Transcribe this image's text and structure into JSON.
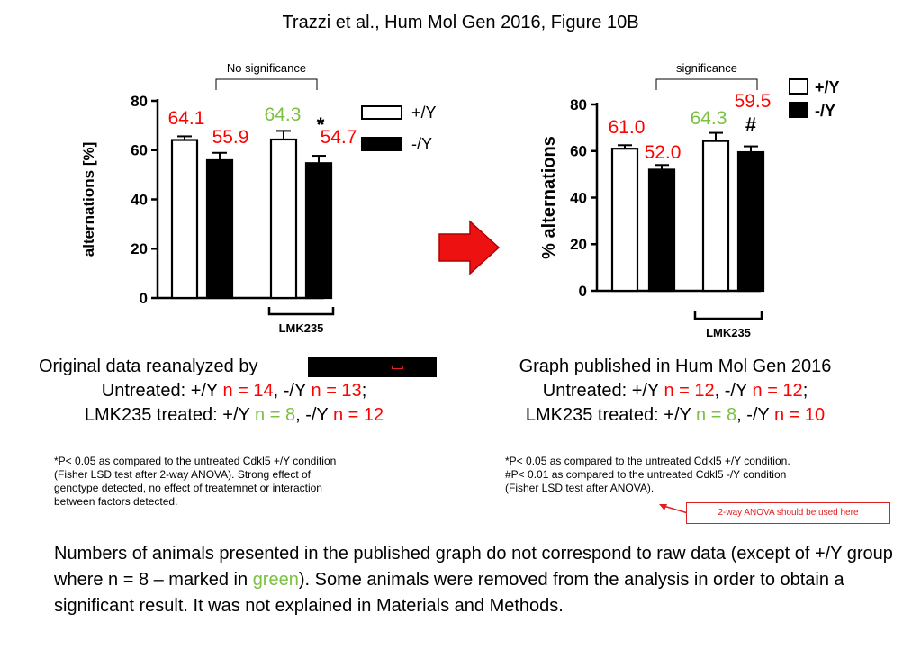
{
  "title": "Trazzi et al., Hum Mol Gen 2016, Figure 10B",
  "chart_data": [
    {
      "type": "bar",
      "ylabel": "alternations [%]",
      "ylim": [
        0,
        80
      ],
      "yticks": [
        "0",
        "20",
        "40",
        "60",
        "80"
      ],
      "group_label": "LMK235",
      "significance_label": "No significance",
      "legend": {
        "placement": "top-right",
        "entries": [
          "+/Y",
          "-/Y"
        ]
      },
      "bars": [
        {
          "series": "+/Y",
          "group": "untreated",
          "value": 64.1,
          "error": 1.5,
          "label": "64.1",
          "label_color": "#ff0000",
          "marker": ""
        },
        {
          "series": "-/Y",
          "group": "untreated",
          "value": 55.9,
          "error": 3.0,
          "label": "55.9",
          "label_color": "#ff0000",
          "marker": "*"
        },
        {
          "series": "+/Y",
          "group": "LMK235",
          "value": 64.3,
          "error": 3.5,
          "label": "64.3",
          "label_color": "#7bc043",
          "marker": ""
        },
        {
          "series": "-/Y",
          "group": "LMK235",
          "value": 54.7,
          "error": 3.0,
          "label": "54.7",
          "label_color": "#ff0000",
          "marker": "*"
        }
      ]
    },
    {
      "type": "bar",
      "ylabel": "% alternations",
      "ylim": [
        0,
        80
      ],
      "yticks": [
        "0",
        "20",
        "40",
        "60",
        "80"
      ],
      "group_label": "LMK235",
      "significance_label": "significance",
      "legend": {
        "placement": "top-right",
        "entries": [
          "+/Y",
          "-/Y"
        ]
      },
      "bars": [
        {
          "series": "+/Y",
          "group": "untreated",
          "value": 61.0,
          "error": 1.5,
          "label": "61.0",
          "label_color": "#ff0000",
          "marker": ""
        },
        {
          "series": "-/Y",
          "group": "untreated",
          "value": 52.0,
          "error": 2.0,
          "label": "52.0",
          "label_color": "#ff0000",
          "marker": "**"
        },
        {
          "series": "+/Y",
          "group": "LMK235",
          "value": 64.3,
          "error": 3.5,
          "label": "64.3",
          "label_color": "#7bc043",
          "marker": ""
        },
        {
          "series": "-/Y",
          "group": "LMK235",
          "value": 59.5,
          "error": 2.5,
          "label": "59.5",
          "label_color": "#ff0000",
          "marker": "#"
        }
      ]
    }
  ],
  "left_caption": {
    "line1": "Original data reanalyzed by",
    "untreated_prefix": "Untreated: +/Y ",
    "untreated_n1": "n = 14",
    "untreated_mid": ", -/Y ",
    "untreated_n2": "n = 13",
    "untreated_suffix": ";",
    "lmk_prefix": "LMK235 treated: +/Y ",
    "lmk_n1": "n = 8",
    "lmk_mid": ", -/Y ",
    "lmk_n2": "n = 12"
  },
  "right_caption": {
    "line1": "Graph published in Hum Mol Gen 2016",
    "untreated_prefix": "Untreated: +/Y ",
    "untreated_n1": "n = 12",
    "untreated_mid": ", -/Y ",
    "untreated_n2": "n = 12",
    "untreated_suffix": ";",
    "lmk_prefix": "LMK235 treated: +/Y ",
    "lmk_n1": "n = 8",
    "lmk_mid": ", -/Y ",
    "lmk_n2": "n = 10"
  },
  "left_note": {
    "line1": "*P< 0.05 as compared to the untreated Cdkl5 +/Y condition",
    "line2": "(Fisher LSD test after 2-way ANOVA). Strong effect of",
    "line3": "genotype detected, no effect of treatemnet or interaction",
    "line4": "between factors detected."
  },
  "right_note": {
    "line1": "*P< 0.05 as compared to the untreated Cdkl5 +/Y condition.",
    "line2": "#P< 0.01 as compared to the untreated Cdkl5 -/Y condition",
    "line3": "(Fisher LSD test after ANOVA)."
  },
  "callout": "2-way ANOVA should be used here",
  "conclusion": {
    "part1": "Numbers of animals presented in the published graph do not correspond to raw data (except of +/Y group where n = 8 – marked in ",
    "green_word": "green",
    "part2": "). Some animals were removed from the analysis in order to obtain a significant result. It was not explained in Materials and Methods."
  },
  "colors": {
    "red": "#ff0000",
    "green": "#7bc043",
    "arrow": "#ee1111",
    "callout": "#e02020"
  }
}
